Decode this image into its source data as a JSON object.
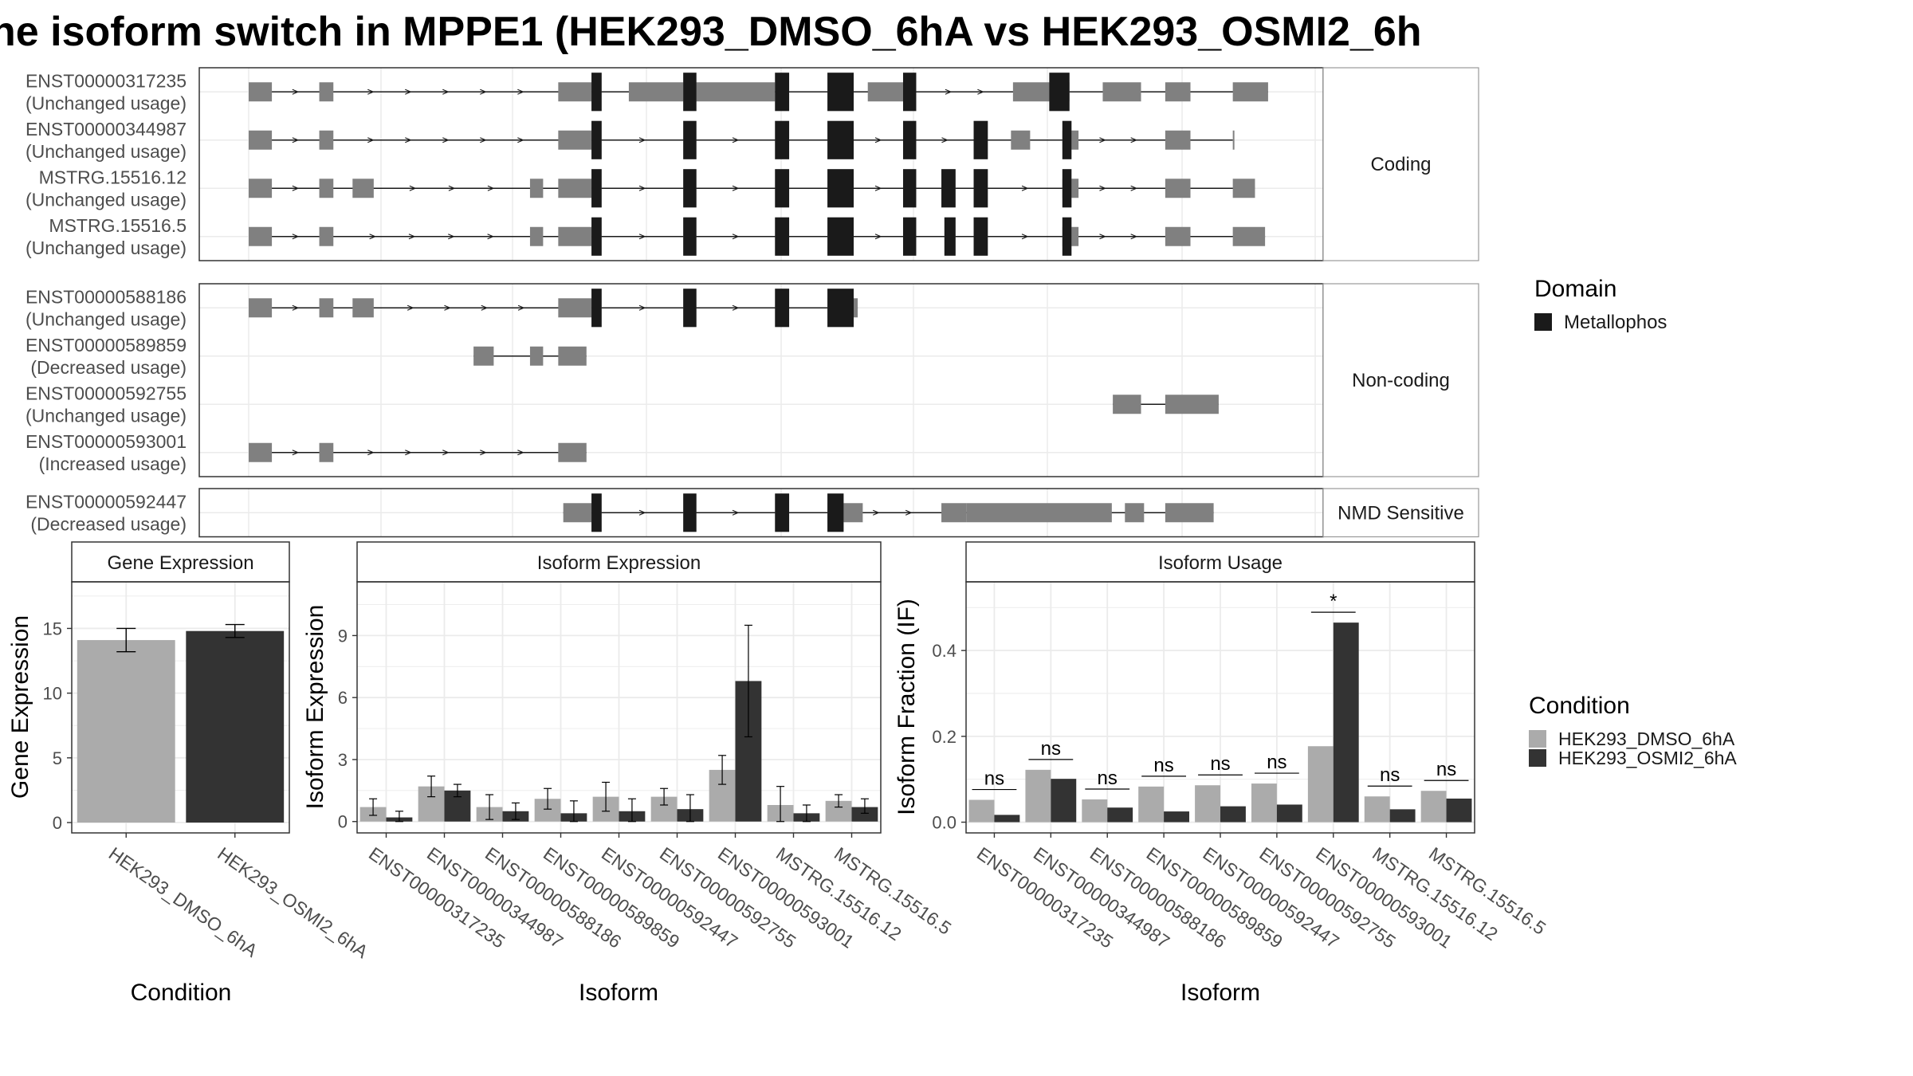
{
  "title": "ne isoform switch in MPPE1 (HEK293_DMSO_6hA vs HEK293_OSMI2_6h",
  "colors": {
    "utr": "#808080",
    "cds": "#1a1a1a",
    "dmso": "#ababab",
    "osmi2": "#333333",
    "grid": "#ebebeb",
    "strip": "#ffffff",
    "panel_border": "#333333",
    "strip_border": "#999999"
  },
  "structure": {
    "coord_range": [
      0,
      1000
    ],
    "panels": [
      {
        "label": "Coding",
        "transcripts": [
          {
            "id": "ENST00000317235",
            "usage": "(Unchanged usage)",
            "utr": [
              [
                0,
                23
              ],
              [
                70,
                84
              ],
              [
                307,
                340
              ],
              [
                377,
                522
              ],
              [
                614,
                658
              ],
              [
                758,
                814
              ],
              [
                847,
                885
              ],
              [
                909,
                934
              ],
              [
                976,
                1011
              ]
            ],
            "cds": [
              [
                340,
                350
              ],
              [
                431,
                444
              ],
              [
                522,
                536
              ],
              [
                574,
                600
              ],
              [
                649,
                662
              ],
              [
                794,
                814
              ]
            ]
          },
          {
            "id": "ENST00000344987",
            "usage": "(Unchanged usage)",
            "utr": [
              [
                0,
                23
              ],
              [
                70,
                84
              ],
              [
                307,
                340
              ],
              [
                756,
                775
              ],
              [
                807,
                823
              ],
              [
                976,
                976
              ],
              [
                909,
                934
              ]
            ],
            "cds": [
              [
                340,
                350
              ],
              [
                431,
                444
              ],
              [
                522,
                536
              ],
              [
                574,
                600
              ],
              [
                649,
                662
              ],
              [
                719,
                733
              ],
              [
                807,
                816
              ]
            ]
          },
          {
            "id": "MSTRG.15516.12",
            "usage": "(Unchanged usage)",
            "utr": [
              [
                0,
                23
              ],
              [
                70,
                84
              ],
              [
                103,
                124
              ],
              [
                279,
                292
              ],
              [
                307,
                340
              ],
              [
                807,
                823
              ],
              [
                909,
                934
              ],
              [
                976,
                998
              ]
            ],
            "cds": [
              [
                340,
                350
              ],
              [
                431,
                444
              ],
              [
                522,
                536
              ],
              [
                574,
                600
              ],
              [
                649,
                662
              ],
              [
                687,
                701
              ],
              [
                719,
                733
              ],
              [
                807,
                816
              ]
            ]
          },
          {
            "id": "MSTRG.15516.5",
            "usage": "(Unchanged usage)",
            "utr": [
              [
                0,
                23
              ],
              [
                70,
                84
              ],
              [
                279,
                292
              ],
              [
                307,
                340
              ],
              [
                807,
                823
              ],
              [
                909,
                934
              ],
              [
                976,
                1008
              ]
            ],
            "cds": [
              [
                340,
                350
              ],
              [
                431,
                444
              ],
              [
                522,
                536
              ],
              [
                574,
                600
              ],
              [
                649,
                662
              ],
              [
                690,
                701
              ],
              [
                719,
                733
              ],
              [
                807,
                816
              ]
            ]
          }
        ]
      },
      {
        "label": "Non-coding",
        "transcripts": [
          {
            "id": "ENST00000588186",
            "usage": "(Unchanged usage)",
            "utr": [
              [
                0,
                23
              ],
              [
                70,
                84
              ],
              [
                103,
                124
              ],
              [
                307,
                340
              ],
              [
                574,
                604
              ]
            ],
            "cds": [
              [
                340,
                350
              ],
              [
                431,
                444
              ],
              [
                522,
                536
              ],
              [
                574,
                600
              ]
            ]
          },
          {
            "id": "ENST00000589859",
            "usage": "(Decreased usage)",
            "utr": [
              [
                223,
                243
              ],
              [
                279,
                292
              ],
              [
                307,
                335
              ]
            ],
            "cds": []
          },
          {
            "id": "ENST00000592755",
            "usage": "(Unchanged usage)",
            "utr": [
              [
                857,
                885
              ],
              [
                909,
                962
              ]
            ],
            "cds": []
          },
          {
            "id": "ENST00000593001",
            "usage": "(Increased usage)",
            "utr": [
              [
                0,
                23
              ],
              [
                70,
                84
              ],
              [
                307,
                335
              ]
            ],
            "cds": []
          }
        ]
      },
      {
        "label": "NMD Sensitive",
        "transcripts": [
          {
            "id": "ENST00000592447",
            "usage": "(Decreased usage)",
            "utr": [
              [
                312,
                340
              ],
              [
                574,
                609
              ],
              [
                687,
                712
              ],
              [
                712,
                856
              ],
              [
                869,
                888
              ],
              [
                909,
                957
              ]
            ],
            "cds": [
              [
                340,
                350
              ],
              [
                431,
                444
              ],
              [
                522,
                536
              ],
              [
                574,
                590
              ]
            ]
          }
        ]
      }
    ],
    "legend": {
      "title": "Domain",
      "items": [
        {
          "label": "Metallophos",
          "color": "#1a1a1a"
        }
      ]
    }
  },
  "chart_data": [
    {
      "type": "bar",
      "title": "Gene Expression",
      "xlabel": "Condition",
      "ylabel": "Gene Expression",
      "categories": [
        "HEK293_DMSO_6hA",
        "HEK293_OSMI2_6hA"
      ],
      "values": [
        14.1,
        14.8
      ],
      "errors": [
        [
          13.2,
          15.0
        ],
        [
          14.3,
          15.3
        ]
      ],
      "ylim": [
        -0.8,
        18.6
      ],
      "yticks": [
        0,
        5,
        10,
        15
      ]
    },
    {
      "type": "bar",
      "title": "Isoform Expression",
      "xlabel": "Isoform",
      "ylabel": "Isoform Expression",
      "categories": [
        "ENST00000317235",
        "ENST00000344987",
        "ENST00000588186",
        "ENST00000589859",
        "ENST00000592447",
        "ENST00000592755",
        "ENST00000593001",
        "MSTRG.15516.12",
        "MSTRG.15516.5"
      ],
      "series": [
        {
          "name": "HEK293_DMSO_6hA",
          "values": [
            0.7,
            1.7,
            0.7,
            1.1,
            1.2,
            1.2,
            2.5,
            0.8,
            1.0
          ],
          "errors": [
            [
              0.3,
              1.1
            ],
            [
              1.2,
              2.2
            ],
            [
              0.1,
              1.3
            ],
            [
              0.6,
              1.6
            ],
            [
              0.5,
              1.9
            ],
            [
              0.8,
              1.6
            ],
            [
              1.8,
              3.2
            ],
            [
              0.0,
              1.7
            ],
            [
              0.7,
              1.3
            ]
          ]
        },
        {
          "name": "HEK293_OSMI2_6hA",
          "values": [
            0.2,
            1.5,
            0.5,
            0.4,
            0.5,
            0.6,
            6.8,
            0.4,
            0.7
          ],
          "errors": [
            [
              0.0,
              0.5
            ],
            [
              1.2,
              1.8
            ],
            [
              0.1,
              0.9
            ],
            [
              0.0,
              1.0
            ],
            [
              0.0,
              1.1
            ],
            [
              0.0,
              1.3
            ],
            [
              4.1,
              9.5
            ],
            [
              0.0,
              0.8
            ],
            [
              0.4,
              1.1
            ]
          ]
        }
      ],
      "ylim": [
        -0.55,
        11.6
      ],
      "yticks": [
        0,
        3,
        6,
        9
      ]
    },
    {
      "type": "bar",
      "title": "Isoform Usage",
      "xlabel": "Isoform",
      "ylabel": "Isoform Fraction (IF)",
      "categories": [
        "ENST00000317235",
        "ENST00000344987",
        "ENST00000588186",
        "ENST00000589859",
        "ENST00000592447",
        "ENST00000592755",
        "ENST00000593001",
        "MSTRG.15516.12",
        "MSTRG.15516.5"
      ],
      "series": [
        {
          "name": "HEK293_DMSO_6hA",
          "values": [
            0.052,
            0.122,
            0.053,
            0.083,
            0.086,
            0.09,
            0.177,
            0.06,
            0.073
          ]
        },
        {
          "name": "HEK293_OSMI2_6hA",
          "values": [
            0.017,
            0.101,
            0.034,
            0.025,
            0.037,
            0.041,
            0.465,
            0.03,
            0.055
          ]
        }
      ],
      "significance": [
        "ns",
        "ns",
        "ns",
        "ns",
        "ns",
        "ns",
        "*",
        "ns",
        "ns"
      ],
      "ylim": [
        -0.025,
        0.56
      ],
      "yticks": [
        0.0,
        0.2,
        0.4
      ]
    }
  ],
  "condition_legend": {
    "title": "Condition",
    "items": [
      {
        "label": "HEK293_DMSO_6hA",
        "color": "#ababab"
      },
      {
        "label": "HEK293_OSMI2_6hA",
        "color": "#333333"
      }
    ]
  }
}
